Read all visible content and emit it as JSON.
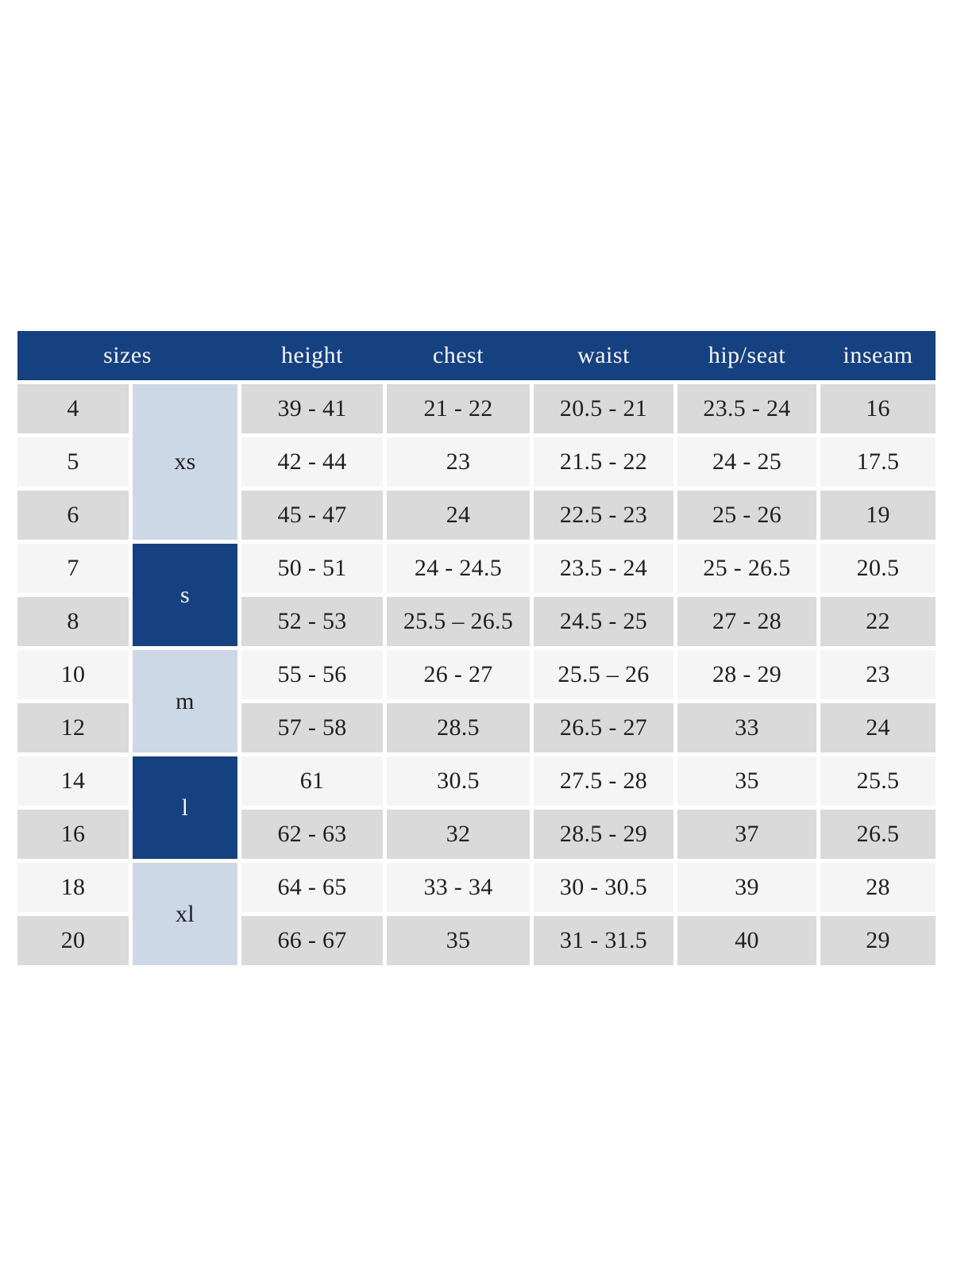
{
  "colors": {
    "header_background": "#164180",
    "header_text": "#f6f7f9",
    "row_shade_dark": "#dadada",
    "row_shade_light": "#f5f5f5",
    "size_group_light_blue": "#ccd8e6",
    "size_group_dark_blue": "#164180",
    "body_text": "#1f1f1f",
    "gap_color": "#ffffff"
  },
  "chart_data": {
    "type": "table",
    "header": [
      "sizes",
      "height",
      "chest",
      "waist",
      "hip/seat",
      "inseam"
    ],
    "size_groups": [
      {
        "label": "xs",
        "span": 3,
        "variant": "light"
      },
      {
        "label": "s",
        "span": 2,
        "variant": "dark"
      },
      {
        "label": "m",
        "span": 2,
        "variant": "light"
      },
      {
        "label": "l",
        "span": 2,
        "variant": "dark"
      },
      {
        "label": "xl",
        "span": 2,
        "variant": "light"
      }
    ],
    "rows": [
      {
        "size": "4",
        "height": "39 - 41",
        "chest": "21 - 22",
        "waist": "20.5 - 21",
        "hip_seat": "23.5 - 24",
        "inseam": "16"
      },
      {
        "size": "5",
        "height": "42 - 44",
        "chest": "23",
        "waist": "21.5 - 22",
        "hip_seat": "24 - 25",
        "inseam": "17.5"
      },
      {
        "size": "6",
        "height": "45 - 47",
        "chest": "24",
        "waist": "22.5 - 23",
        "hip_seat": "25 - 26",
        "inseam": "19"
      },
      {
        "size": "7",
        "height": "50 - 51",
        "chest": "24 - 24.5",
        "waist": "23.5 - 24",
        "hip_seat": "25 - 26.5",
        "inseam": "20.5"
      },
      {
        "size": "8",
        "height": "52 - 53",
        "chest": "25.5 – 26.5",
        "waist": "24.5 - 25",
        "hip_seat": "27 - 28",
        "inseam": "22"
      },
      {
        "size": "10",
        "height": "55 - 56",
        "chest": "26 - 27",
        "waist": "25.5 – 26",
        "hip_seat": "28 - 29",
        "inseam": "23"
      },
      {
        "size": "12",
        "height": "57 - 58",
        "chest": "28.5",
        "waist": "26.5 - 27",
        "hip_seat": "33",
        "inseam": "24"
      },
      {
        "size": "14",
        "height": "61",
        "chest": "30.5",
        "waist": "27.5 - 28",
        "hip_seat": "35",
        "inseam": "25.5"
      },
      {
        "size": "16",
        "height": "62 - 63",
        "chest": "32",
        "waist": "28.5 - 29",
        "hip_seat": "37",
        "inseam": "26.5"
      },
      {
        "size": "18",
        "height": "64 - 65",
        "chest": "33 - 34",
        "waist": "30 - 30.5",
        "hip_seat": "39",
        "inseam": "28"
      },
      {
        "size": "20",
        "height": "66 - 67",
        "chest": "35",
        "waist": "31 - 31.5",
        "hip_seat": "40",
        "inseam": "29"
      }
    ]
  }
}
